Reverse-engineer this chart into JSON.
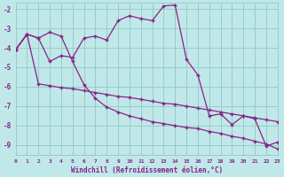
{
  "background_color": "#c0e8e8",
  "grid_color": "#98cccc",
  "line_color": "#882288",
  "xlim": [
    0,
    23
  ],
  "ylim": [
    -9.5,
    -1.7
  ],
  "yticks": [
    -9,
    -8,
    -7,
    -6,
    -5,
    -4,
    -3,
    -2
  ],
  "xticks": [
    0,
    1,
    2,
    3,
    4,
    5,
    6,
    7,
    8,
    9,
    10,
    11,
    12,
    13,
    14,
    15,
    16,
    17,
    18,
    19,
    20,
    21,
    22,
    23
  ],
  "xlabel": "Windchill (Refroidissement éolien,°C)",
  "line1_x": [
    0,
    1,
    2,
    3,
    4,
    5,
    6,
    7,
    8,
    9,
    10,
    11,
    12,
    13,
    14,
    15,
    16,
    17,
    18,
    19,
    20,
    21,
    22,
    23
  ],
  "line1_y": [
    -4.1,
    -3.3,
    -3.5,
    -4.7,
    -4.4,
    -4.5,
    -3.5,
    -3.4,
    -3.6,
    -2.6,
    -2.35,
    -2.5,
    -2.6,
    -1.85,
    -1.8,
    -4.6,
    -5.4,
    -7.5,
    -7.4,
    -7.95,
    -7.5,
    -7.65,
    -9.05,
    -8.85
  ],
  "line2_x": [
    0,
    1,
    2,
    3,
    4,
    5,
    6,
    7,
    8,
    9,
    10,
    11,
    12,
    13,
    14,
    15,
    16,
    17,
    18,
    19,
    20,
    21,
    22,
    23
  ],
  "line2_y": [
    -4.1,
    -3.3,
    -3.5,
    -3.2,
    -3.4,
    -4.7,
    -5.9,
    -6.6,
    -7.05,
    -7.3,
    -7.5,
    -7.65,
    -7.8,
    -7.9,
    -8.0,
    -8.1,
    -8.15,
    -8.3,
    -8.4,
    -8.55,
    -8.65,
    -8.8,
    -8.95,
    -9.2
  ],
  "line3_x": [
    0,
    1,
    2,
    3,
    4,
    5,
    6,
    7,
    8,
    9,
    10,
    11,
    12,
    13,
    14,
    15,
    16,
    17,
    18,
    19,
    20,
    21,
    22,
    23
  ],
  "line3_y": [
    -4.1,
    -3.3,
    -5.85,
    -5.95,
    -6.05,
    -6.1,
    -6.2,
    -6.3,
    -6.4,
    -6.5,
    -6.55,
    -6.65,
    -6.75,
    -6.85,
    -6.9,
    -7.0,
    -7.1,
    -7.2,
    -7.3,
    -7.4,
    -7.5,
    -7.6,
    -7.7,
    -7.8
  ]
}
